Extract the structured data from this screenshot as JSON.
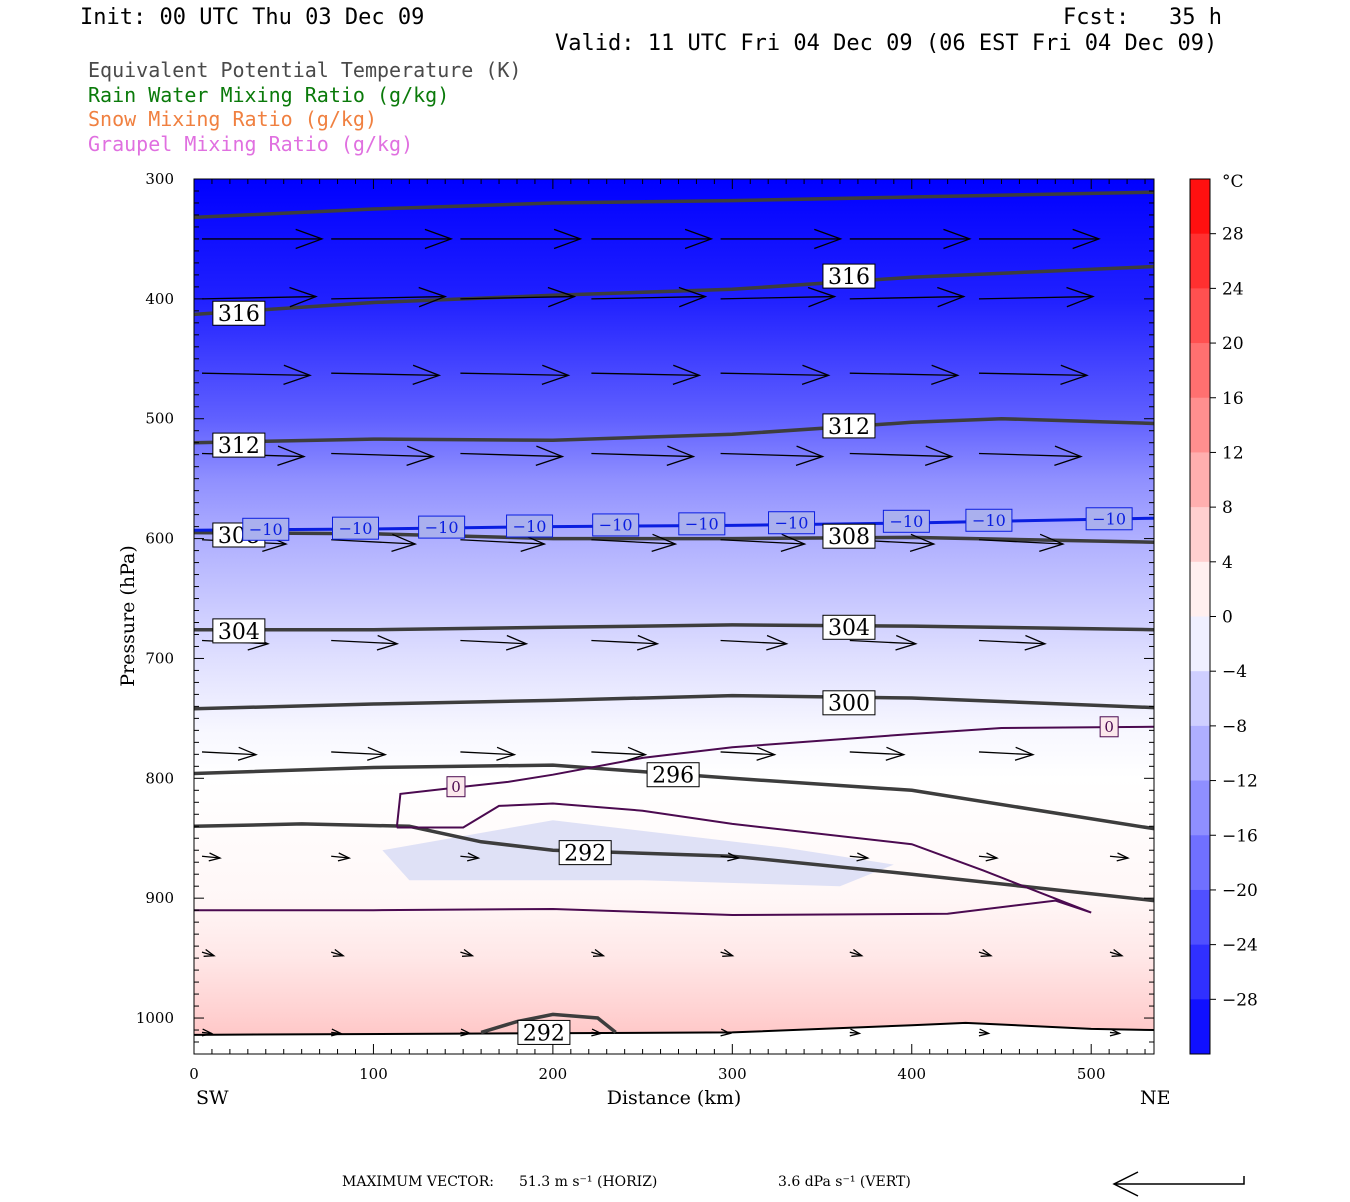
{
  "header": {
    "init": "Init: 00 UTC Thu 03 Dec 09",
    "fcst": "Fcst:   35 h",
    "valid": "Valid: 11 UTC Fri 04 Dec 09 (06 EST Fri 04 Dec 09)"
  },
  "legend": [
    {
      "label": "Equivalent Potential Temperature (K)",
      "color": "#4a4a4a"
    },
    {
      "label": "Rain Water Mixing Ratio (g/kg)",
      "color": "#0a7a0a"
    },
    {
      "label": "Snow Mixing Ratio (g/kg)",
      "color": "#f08040"
    },
    {
      "label": "Graupel Mixing Ratio (g/kg)",
      "color": "#e070e0"
    }
  ],
  "footer": {
    "max_vector_label": "MAXIMUM VECTOR:",
    "horiz": "51.3 m s⁻¹ (HORIZ)",
    "vert": "3.6 dPa s⁻¹ (VERT)"
  },
  "chart_data": {
    "type": "cross-section",
    "xlabel": "Distance (km)",
    "ylabel": "Pressure (hPa)",
    "xlim": [
      0,
      535
    ],
    "ylim": [
      1030,
      300
    ],
    "x_ticks": [
      0,
      100,
      200,
      300,
      400,
      500
    ],
    "y_ticks": [
      300,
      400,
      500,
      600,
      700,
      800,
      900,
      1000
    ],
    "x_left_label": "SW",
    "x_right_label": "NE",
    "colorbar": {
      "unit": "°C",
      "tick_labels": [
        "28",
        "24",
        "20",
        "16",
        "12",
        "8",
        "4",
        "0",
        "−4",
        "−8",
        "−12",
        "−16",
        "−20",
        "−24",
        "−28"
      ],
      "tick_values": [
        28,
        24,
        20,
        16,
        12,
        8,
        4,
        0,
        -4,
        -8,
        -12,
        -16,
        -20,
        -24,
        -28
      ],
      "min": -32,
      "max": 32
    },
    "temperature_fill": [
      {
        "p": 300,
        "t": -32
      },
      {
        "p": 400,
        "t": -28
      },
      {
        "p": 450,
        "t": -24
      },
      {
        "p": 500,
        "t": -20
      },
      {
        "p": 550,
        "t": -14
      },
      {
        "p": 600,
        "t": -10
      },
      {
        "p": 650,
        "t": -7
      },
      {
        "p": 700,
        "t": -4
      },
      {
        "p": 760,
        "t": -1
      },
      {
        "p": 800,
        "t": 0
      },
      {
        "p": 900,
        "t": 1
      },
      {
        "p": 950,
        "t": 3
      },
      {
        "p": 1000,
        "t": 6
      },
      {
        "p": 1030,
        "t": 8
      }
    ],
    "theta_e_lines": [
      {
        "label": "316",
        "label_positions": [
          [
            25,
            412
          ],
          [
            365,
            381
          ]
        ],
        "points": [
          [
            0,
            332
          ],
          [
            100,
            325
          ],
          [
            200,
            320
          ],
          [
            300,
            318
          ],
          [
            400,
            315
          ],
          [
            535,
            311
          ]
        ]
      },
      {
        "label": "316",
        "label_positions": [],
        "points": [
          [
            0,
            413
          ],
          [
            100,
            403
          ],
          [
            200,
            397
          ],
          [
            300,
            392
          ],
          [
            400,
            382
          ],
          [
            535,
            373
          ]
        ]
      },
      {
        "label": "312",
        "label_positions": [
          [
            25,
            522
          ],
          [
            365,
            506
          ]
        ],
        "points": [
          [
            0,
            520
          ],
          [
            100,
            517
          ],
          [
            200,
            518
          ],
          [
            300,
            513
          ],
          [
            400,
            503
          ],
          [
            450,
            500
          ],
          [
            535,
            504
          ]
        ]
      },
      {
        "label": "308",
        "label_positions": [
          [
            25,
            597
          ],
          [
            365,
            598
          ]
        ],
        "points": [
          [
            0,
            595
          ],
          [
            100,
            596
          ],
          [
            200,
            600
          ],
          [
            300,
            600
          ],
          [
            400,
            599
          ],
          [
            535,
            603
          ]
        ]
      },
      {
        "label": "304",
        "label_positions": [
          [
            25,
            677
          ],
          [
            365,
            674
          ]
        ],
        "points": [
          [
            0,
            676
          ],
          [
            100,
            676
          ],
          [
            200,
            674
          ],
          [
            300,
            672
          ],
          [
            400,
            673
          ],
          [
            535,
            676
          ]
        ]
      },
      {
        "label": "300",
        "label_positions": [
          [
            365,
            737
          ]
        ],
        "points": [
          [
            0,
            742
          ],
          [
            100,
            738
          ],
          [
            200,
            735
          ],
          [
            300,
            731
          ],
          [
            400,
            733
          ],
          [
            535,
            741
          ]
        ]
      },
      {
        "label": "296",
        "label_positions": [
          [
            267,
            797
          ]
        ],
        "points": [
          [
            0,
            796
          ],
          [
            100,
            791
          ],
          [
            200,
            789
          ],
          [
            300,
            800
          ],
          [
            400,
            810
          ],
          [
            535,
            842
          ]
        ]
      },
      {
        "label": "292",
        "label_positions": [
          [
            218,
            862
          ]
        ],
        "points": [
          [
            0,
            840
          ],
          [
            60,
            838
          ],
          [
            120,
            840
          ],
          [
            160,
            853
          ],
          [
            200,
            860
          ],
          [
            300,
            865
          ],
          [
            400,
            880
          ],
          [
            535,
            902
          ]
        ]
      },
      {
        "label": "292",
        "label_positions": [
          [
            195,
            1012
          ]
        ],
        "points": [
          [
            160,
            1012
          ],
          [
            180,
            1003
          ],
          [
            200,
            997
          ],
          [
            225,
            1000
          ],
          [
            235,
            1012
          ]
        ]
      }
    ],
    "isotherm_minus10": {
      "label": "−10",
      "label_x": [
        40,
        90,
        138,
        187,
        235,
        283,
        333,
        397,
        443,
        510
      ],
      "points": [
        [
          0,
          593
        ],
        [
          100,
          592
        ],
        [
          200,
          590
        ],
        [
          300,
          589
        ],
        [
          400,
          587
        ],
        [
          535,
          583
        ]
      ]
    },
    "isotherm_zero": {
      "label": "0",
      "label_positions": [
        [
          146,
          807
        ],
        [
          510,
          757
        ]
      ],
      "upper_branch": [
        [
          113,
          841
        ],
        [
          115,
          813
        ],
        [
          150,
          807
        ],
        [
          175,
          803
        ],
        [
          200,
          797
        ],
        [
          250,
          783
        ],
        [
          300,
          774
        ],
        [
          400,
          763
        ],
        [
          450,
          758
        ],
        [
          535,
          757
        ]
      ],
      "lower_branch": [
        [
          113,
          841
        ],
        [
          150,
          841
        ],
        [
          170,
          823
        ],
        [
          200,
          821
        ],
        [
          250,
          827
        ],
        [
          300,
          838
        ],
        [
          400,
          855
        ],
        [
          440,
          877
        ],
        [
          500,
          912
        ],
        [
          480,
          902
        ],
        [
          420,
          913
        ],
        [
          300,
          914
        ],
        [
          200,
          909
        ],
        [
          100,
          910
        ],
        [
          0,
          910
        ]
      ]
    },
    "wind_vectors": [
      {
        "p": 350,
        "length": 1.0,
        "slope": 0.0,
        "xs": [
          0,
          72,
          144,
          217,
          289,
          361,
          433,
          506
        ]
      },
      {
        "p": 400,
        "length": 0.95,
        "slope": -0.02,
        "xs": [
          0,
          72,
          144,
          217,
          289,
          361,
          433,
          506
        ]
      },
      {
        "p": 462,
        "length": 0.9,
        "slope": 0.02,
        "xs": [
          0,
          72,
          144,
          217,
          289,
          361,
          433,
          506
        ]
      },
      {
        "p": 529,
        "length": 0.85,
        "slope": 0.03,
        "xs": [
          0,
          72,
          144,
          217,
          289,
          361,
          433,
          506
        ]
      },
      {
        "p": 601,
        "length": 0.7,
        "slope": 0.05,
        "xs": [
          0,
          72,
          144,
          217,
          289,
          361,
          433,
          506
        ]
      },
      {
        "p": 685,
        "length": 0.55,
        "slope": 0.05,
        "xs": [
          0,
          72,
          144,
          217,
          289,
          361,
          433,
          506
        ]
      },
      {
        "p": 778,
        "length": 0.45,
        "slope": 0.05,
        "xs": [
          0,
          72,
          144,
          217,
          289,
          361,
          433,
          506
        ]
      },
      {
        "p": 865,
        "length": 0.15,
        "slope": 0.1,
        "xs": [
          0,
          72,
          144,
          217,
          289,
          361,
          433,
          506
        ]
      },
      {
        "p": 945,
        "length": 0.1,
        "slope": 0.3,
        "xs": [
          0,
          72,
          144,
          217,
          289,
          361,
          433,
          506
        ]
      },
      {
        "p": 1012,
        "length": 0.08,
        "slope": 0.1,
        "xs": [
          0,
          72,
          144,
          217,
          289,
          361,
          433,
          506
        ]
      }
    ],
    "surface_line": [
      [
        0,
        1014
      ],
      [
        150,
        1013
      ],
      [
        300,
        1012
      ],
      [
        400,
        1006
      ],
      [
        430,
        1004
      ],
      [
        500,
        1009
      ],
      [
        535,
        1010
      ]
    ]
  }
}
